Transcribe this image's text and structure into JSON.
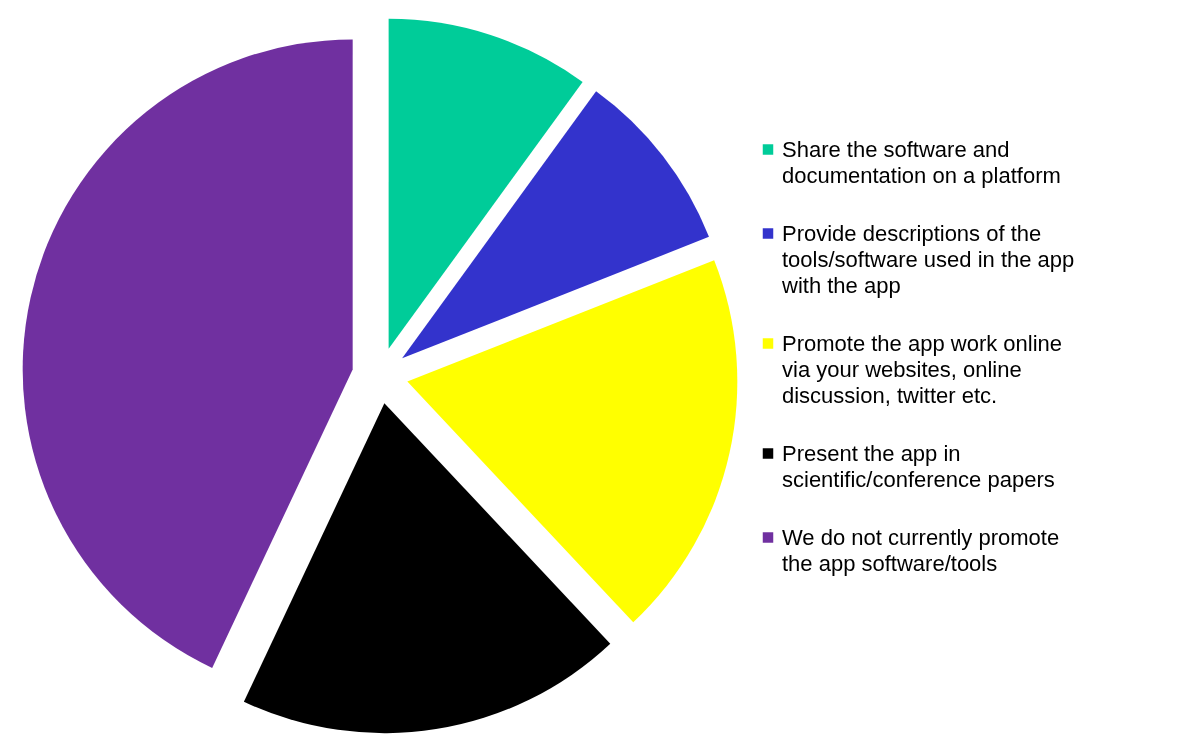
{
  "chart_data": {
    "type": "pie",
    "categories": [
      "Share the software and documentation on a platform",
      "Provide descriptions  of the tools/software used in the app with the app",
      "Promote the app work online via your websites, online discussion, twitter etc.",
      "Present the app in scientific/conference papers",
      "We do not currently promote the app software/tools"
    ],
    "values": [
      10,
      9,
      19,
      19,
      43
    ],
    "colors": [
      "#00cc99",
      "#3333cc",
      "#ffff00",
      "#000000",
      "#7030a0"
    ],
    "legend": "right"
  }
}
